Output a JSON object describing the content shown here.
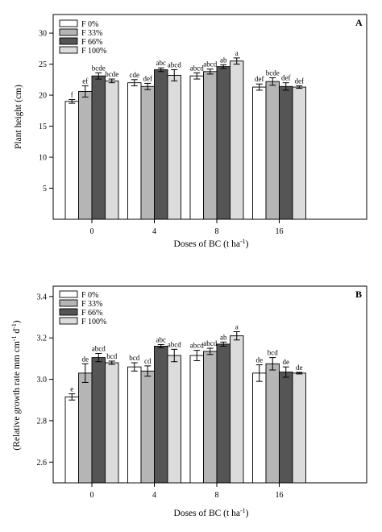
{
  "colors": {
    "F 0%": "#ffffff",
    "F 33%": "#b5b5b5",
    "F 66%": "#555555",
    "F 100%": "#dcdcdc",
    "frame": "#000000"
  },
  "chart_data": [
    {
      "type": "bar",
      "panel_label": "A",
      "categories": [
        "0",
        "4",
        "8",
        "16"
      ],
      "xlabel_pre": "Doses of BC (t ha",
      "xlabel_sup": "-1",
      "xlabel_post": ")",
      "ylabel": "Plant height (cm)",
      "ylim": [
        0,
        33
      ],
      "yticks": [
        5,
        10,
        15,
        20,
        25,
        30
      ],
      "ytick_labels": [
        "5",
        "10",
        "15",
        "20",
        "25",
        "30"
      ],
      "legend_position": "top-left",
      "series": [
        {
          "name": "F 0%",
          "values": [
            19.0,
            22.0,
            23.1,
            21.3
          ],
          "errors": [
            0.3,
            0.5,
            0.5,
            0.5
          ],
          "letters": [
            "f",
            "cde",
            "abcd",
            "def"
          ]
        },
        {
          "name": "F 33%",
          "values": [
            20.6,
            21.4,
            23.8,
            22.2
          ],
          "errors": [
            0.9,
            0.5,
            0.4,
            0.6
          ],
          "letters": [
            "ef",
            "def",
            "abcd",
            "bcde"
          ]
        },
        {
          "name": "F 66%",
          "values": [
            23.1,
            24.1,
            24.6,
            21.4
          ],
          "errors": [
            0.5,
            0.3,
            0.3,
            0.6
          ],
          "letters": [
            "bcde",
            "abc",
            "ab",
            "def"
          ]
        },
        {
          "name": "F 100%",
          "values": [
            22.3,
            23.2,
            25.5,
            21.3
          ],
          "errors": [
            0.3,
            0.9,
            0.5,
            0.2
          ],
          "letters": [
            "bcde",
            "abcd",
            "a",
            "def"
          ]
        }
      ]
    },
    {
      "type": "bar",
      "panel_label": "B",
      "categories": [
        "0",
        "4",
        "8",
        "16"
      ],
      "xlabel_pre": "Doses of BC (t ha",
      "xlabel_sup": "-1",
      "xlabel_post": ")",
      "ylabel_pre": "(Relative growth rate mm cm",
      "ylabel_sup1": "-1",
      "ylabel_mid": " d",
      "ylabel_sup2": "-1",
      "ylabel_post": ")",
      "ylim": [
        2.5,
        3.45
      ],
      "yticks": [
        2.6,
        2.8,
        3.0,
        3.2,
        3.4
      ],
      "ytick_labels": [
        "2.6",
        "2.8",
        "3.0",
        "3.2",
        "3.4"
      ],
      "legend_position": "top-left",
      "series": [
        {
          "name": "F 0%",
          "values": [
            2.915,
            3.06,
            3.115,
            3.03
          ],
          "errors": [
            0.015,
            0.02,
            0.025,
            0.04
          ],
          "letters": [
            "e",
            "bcd",
            "abcd",
            "de"
          ]
        },
        {
          "name": "F 33%",
          "values": [
            3.03,
            3.04,
            3.135,
            3.075
          ],
          "errors": [
            0.045,
            0.025,
            0.015,
            0.03
          ],
          "letters": [
            "de",
            "cd",
            "abcd",
            "bcd"
          ]
        },
        {
          "name": "F 66%",
          "values": [
            3.105,
            3.16,
            3.17,
            3.035
          ],
          "errors": [
            0.02,
            0.008,
            0.01,
            0.025
          ],
          "letters": [
            "abcd",
            "abc",
            "ab",
            "de"
          ]
        },
        {
          "name": "F 100%",
          "values": [
            3.08,
            3.115,
            3.21,
            3.03
          ],
          "errors": [
            0.008,
            0.03,
            0.02,
            0.004
          ],
          "letters": [
            "bcd",
            "abcd",
            "a",
            "de"
          ]
        }
      ]
    }
  ]
}
